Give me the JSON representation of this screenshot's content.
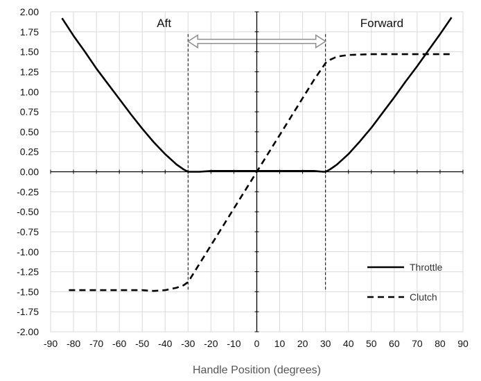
{
  "chart_data": {
    "type": "line",
    "title": "",
    "xlabel": "Handle Position (degrees)",
    "ylabel": "",
    "xlim": [
      -90,
      90
    ],
    "ylim": [
      -2.0,
      2.0
    ],
    "x_ticks": [
      -90,
      -80,
      -70,
      -60,
      -50,
      -40,
      -30,
      -20,
      -10,
      0,
      10,
      20,
      30,
      40,
      50,
      60,
      70,
      80,
      90
    ],
    "y_ticks": [
      2.0,
      1.75,
      1.5,
      1.25,
      1.0,
      0.75,
      0.5,
      0.25,
      0.0,
      -0.25,
      -0.5,
      -0.75,
      -1.0,
      -1.25,
      -1.5,
      -1.75,
      -2.0
    ],
    "x_tick_labels": [
      "-90",
      "-80",
      "-70",
      "-60",
      "-50",
      "-40",
      "-30",
      "-20",
      "-10",
      "0",
      "10",
      "20",
      "30",
      "40",
      "50",
      "60",
      "70",
      "80",
      "90"
    ],
    "y_tick_labels": [
      "2.00",
      "1.75",
      "1.50",
      "1.25",
      "1.00",
      "0.75",
      "0.50",
      "0.25",
      "0.00",
      "-0.25",
      "-0.50",
      "-0.75",
      "-1.00",
      "-1.25",
      "-1.50",
      "-1.75",
      "-2.00"
    ],
    "grid": true,
    "legend_position": "bottom-right",
    "series": [
      {
        "name": "Throttle",
        "style": "solid",
        "color": "#000000",
        "x": [
          -85,
          -80,
          -75,
          -70,
          -65,
          -60,
          -55,
          -50,
          -45,
          -40,
          -35,
          -32,
          -30,
          -25,
          -20,
          -10,
          0,
          10,
          20,
          25,
          29,
          30,
          32,
          35,
          40,
          45,
          50,
          55,
          60,
          65,
          70,
          75,
          80,
          85
        ],
        "y": [
          1.92,
          1.7,
          1.5,
          1.29,
          1.1,
          0.91,
          0.72,
          0.54,
          0.37,
          0.22,
          0.09,
          0.03,
          0.0,
          0.0,
          0.01,
          0.01,
          0.01,
          0.01,
          0.01,
          0.01,
          0.0,
          0.0,
          0.03,
          0.09,
          0.22,
          0.38,
          0.55,
          0.74,
          0.93,
          1.13,
          1.32,
          1.52,
          1.72,
          1.93
        ]
      },
      {
        "name": "Clutch",
        "style": "dashed",
        "color": "#000000",
        "x": [
          -82,
          -70,
          -60,
          -50,
          -45,
          -40,
          -35,
          -32,
          -30,
          -25,
          -20,
          -15,
          -10,
          -5,
          0,
          5,
          10,
          15,
          20,
          25,
          30,
          32,
          35,
          40,
          50,
          60,
          70,
          80,
          85
        ],
        "y": [
          -1.48,
          -1.48,
          -1.48,
          -1.48,
          -1.49,
          -1.48,
          -1.45,
          -1.42,
          -1.38,
          -1.15,
          -0.92,
          -0.69,
          -0.46,
          -0.23,
          0.0,
          0.23,
          0.46,
          0.69,
          0.92,
          1.15,
          1.36,
          1.4,
          1.44,
          1.46,
          1.47,
          1.47,
          1.47,
          1.47,
          1.47
        ]
      }
    ],
    "annotations": [
      {
        "text": "Aft",
        "x": -40,
        "y": 1.86
      },
      {
        "text": "Forward",
        "x": 50,
        "y": 1.86
      }
    ],
    "vertical_markers": [
      -30,
      30
    ],
    "double_arrow": {
      "x_from": -30,
      "x_to": 30,
      "y": 1.63
    }
  }
}
